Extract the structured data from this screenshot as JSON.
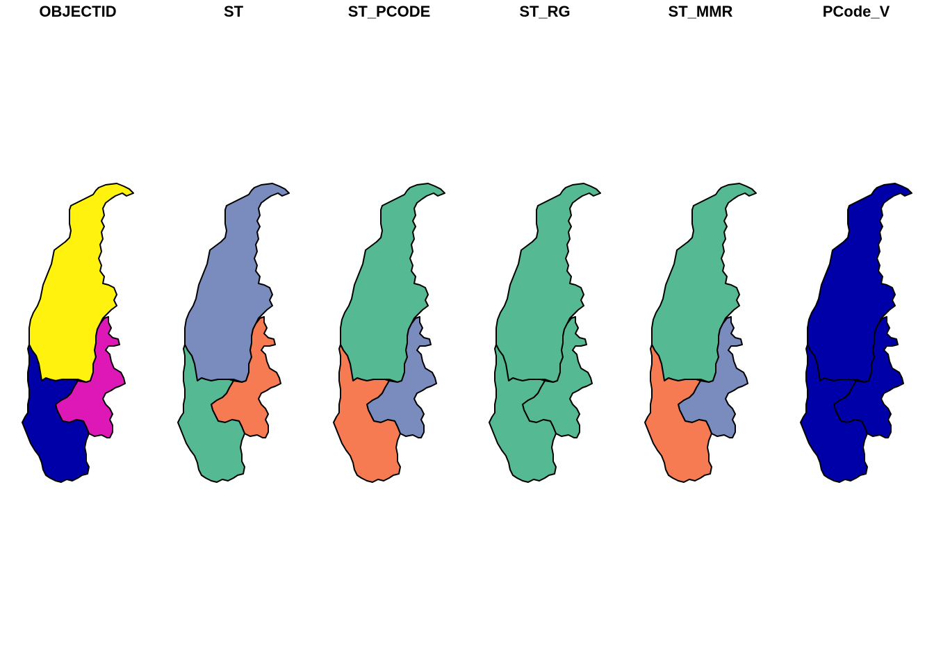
{
  "figure": {
    "panels": [
      {
        "title": "OBJECTID",
        "regions": {
          "north": "#FFF20F",
          "east": "#DD18B7",
          "southwest": "#0000A8"
        }
      },
      {
        "title": "ST",
        "regions": {
          "north": "#7A8BBD",
          "east": "#F67B52",
          "southwest": "#55B993"
        }
      },
      {
        "title": "ST_PCODE",
        "regions": {
          "north": "#55B993",
          "east": "#7A8BBD",
          "southwest": "#F67B52"
        }
      },
      {
        "title": "ST_RG",
        "regions": {
          "north": "#55B993",
          "east": "#55B993",
          "southwest": "#55B993"
        }
      },
      {
        "title": "ST_MMR",
        "regions": {
          "north": "#55B993",
          "east": "#7A8BBD",
          "southwest": "#F67B52"
        }
      },
      {
        "title": "PCode_V",
        "regions": {
          "north": "#0000A8",
          "east": "#0000A8",
          "southwest": "#0000A8"
        }
      }
    ],
    "outline_color": "#000000",
    "background_color": "#FFFFFF"
  }
}
